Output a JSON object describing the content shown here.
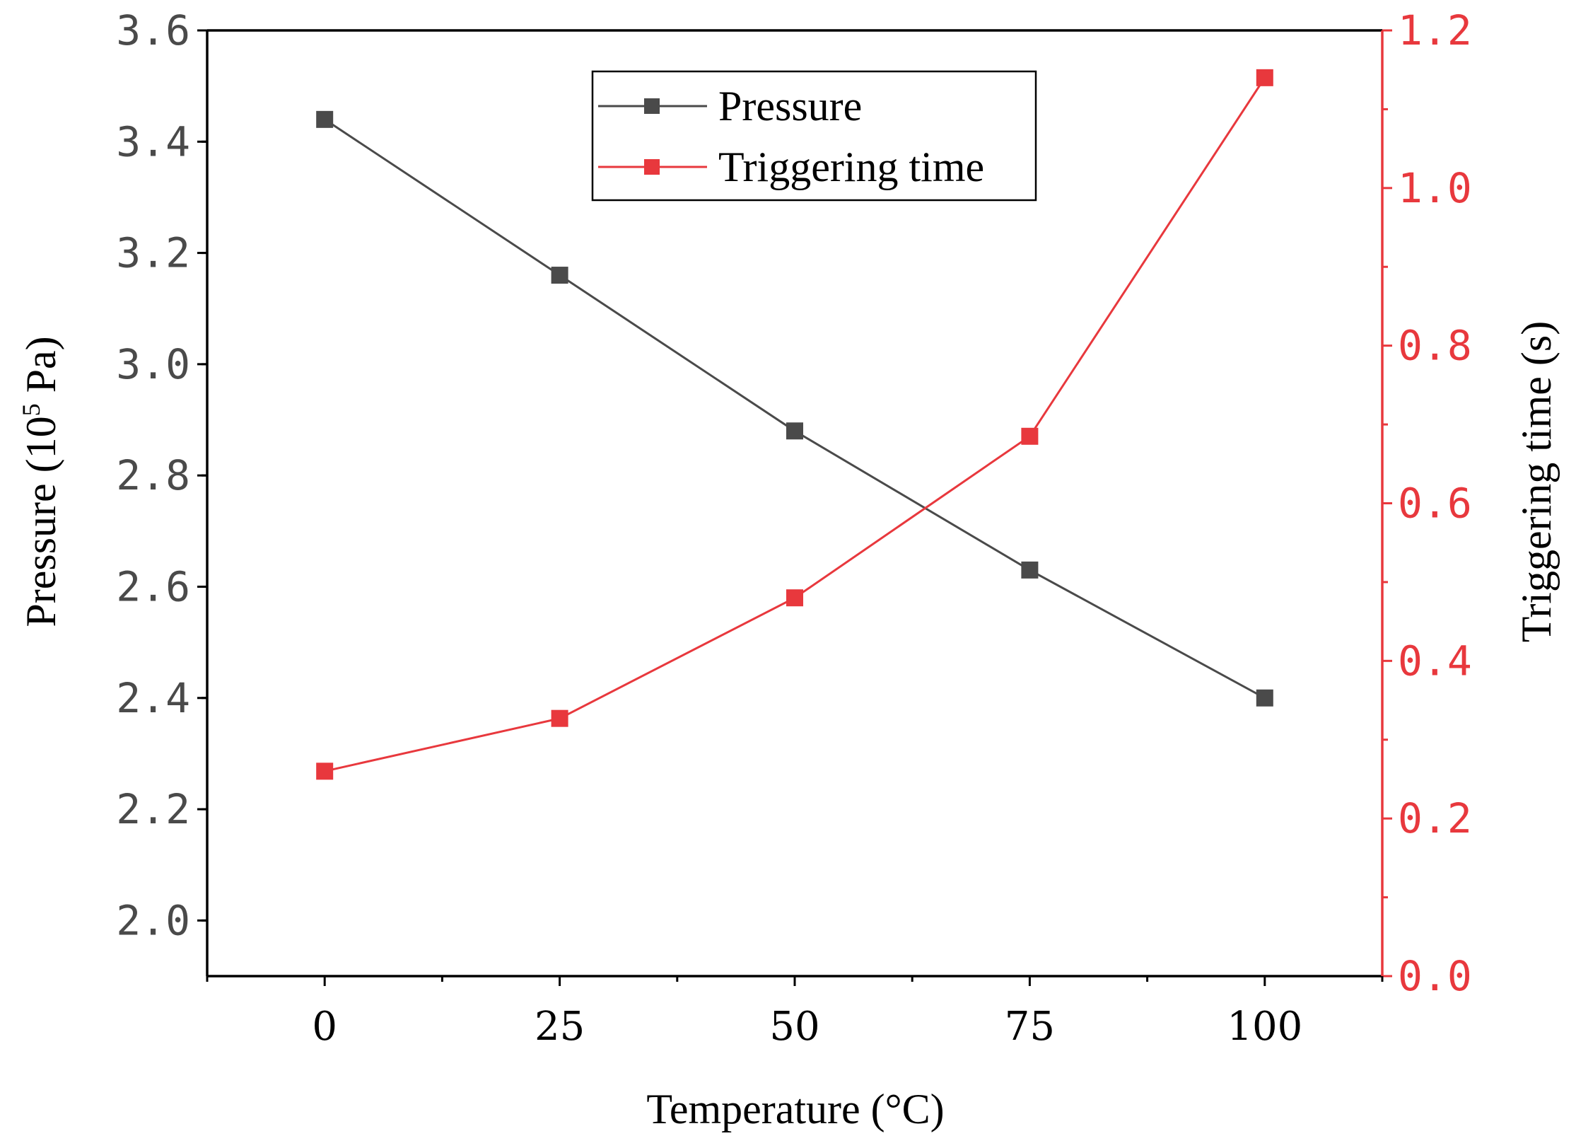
{
  "chart_data": {
    "type": "line",
    "title": "",
    "xlabel": "Temperature (°C)",
    "ylabel_left": {
      "prefix": "Pressure (10",
      "superscript": "5",
      "suffix": " Pa)"
    },
    "ylabel_right": "Triggering time (s)",
    "x": [
      0,
      25,
      50,
      75,
      100
    ],
    "x_ticks": [
      "0",
      "25",
      "50",
      "75",
      "100"
    ],
    "xlim": [
      -12.5,
      112.5
    ],
    "ylim_left": [
      1.9,
      3.6
    ],
    "y_ticks_left": [
      "2.0",
      "2.2",
      "2.4",
      "2.6",
      "2.8",
      "3.0",
      "3.2",
      "3.4",
      "3.6"
    ],
    "ylim_right": [
      0.0,
      1.2
    ],
    "y_ticks_right": [
      "0.0",
      "0.2",
      "0.4",
      "0.6",
      "0.8",
      "1.0",
      "1.2"
    ],
    "series": [
      {
        "name": "Pressure",
        "axis": "left",
        "color": "#4a4a4a",
        "marker": "square",
        "values": [
          3.44,
          3.16,
          2.88,
          2.63,
          2.4
        ]
      },
      {
        "name": "Triggering time",
        "axis": "right",
        "color": "#e8383d",
        "marker": "square",
        "values": [
          0.26,
          0.327,
          0.48,
          0.685,
          1.14
        ]
      }
    ],
    "legend_position": "top-center",
    "grid": false
  },
  "colors": {
    "left_axis": "#4a4a4a",
    "right_axis": "#e8383d",
    "frame": "#000000"
  }
}
